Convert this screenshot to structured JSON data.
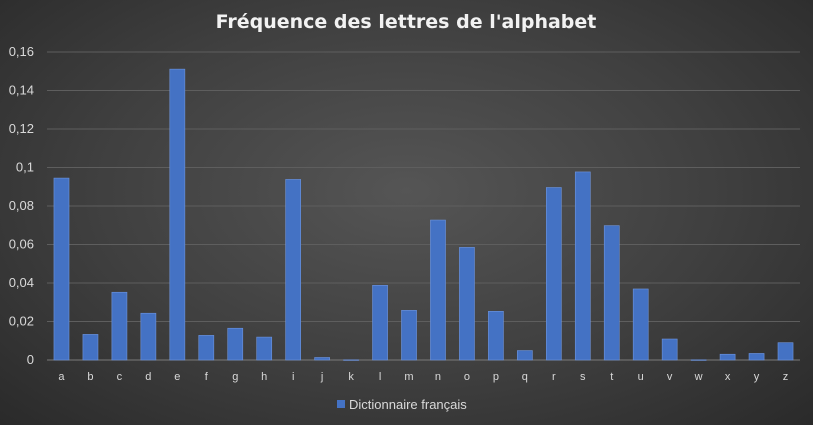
{
  "chart_data": {
    "type": "bar",
    "title": "Fréquence des lettres de l'alphabet",
    "xlabel": "",
    "ylabel": "",
    "categories": [
      "a",
      "b",
      "c",
      "d",
      "e",
      "f",
      "g",
      "h",
      "i",
      "j",
      "k",
      "l",
      "m",
      "n",
      "o",
      "p",
      "q",
      "r",
      "s",
      "t",
      "u",
      "v",
      "w",
      "x",
      "y",
      "z"
    ],
    "series": [
      {
        "name": "Dictionnaire français",
        "color": "#4472c4",
        "values": [
          0.0945,
          0.0133,
          0.0352,
          0.0243,
          0.1511,
          0.0128,
          0.0165,
          0.0119,
          0.0938,
          0.0013,
          0.0001,
          0.0388,
          0.0258,
          0.0727,
          0.0585,
          0.0253,
          0.0049,
          0.0896,
          0.0977,
          0.0698,
          0.0369,
          0.0109,
          0.0001,
          0.003,
          0.0034,
          0.009
        ]
      }
    ],
    "ylim": [
      0,
      0.16
    ],
    "yticks": [
      "0",
      "0,02",
      "0,04",
      "0,06",
      "0,08",
      "0,1",
      "0,12",
      "0,14",
      "0,16"
    ],
    "grid": true,
    "legend_position": "bottom"
  }
}
